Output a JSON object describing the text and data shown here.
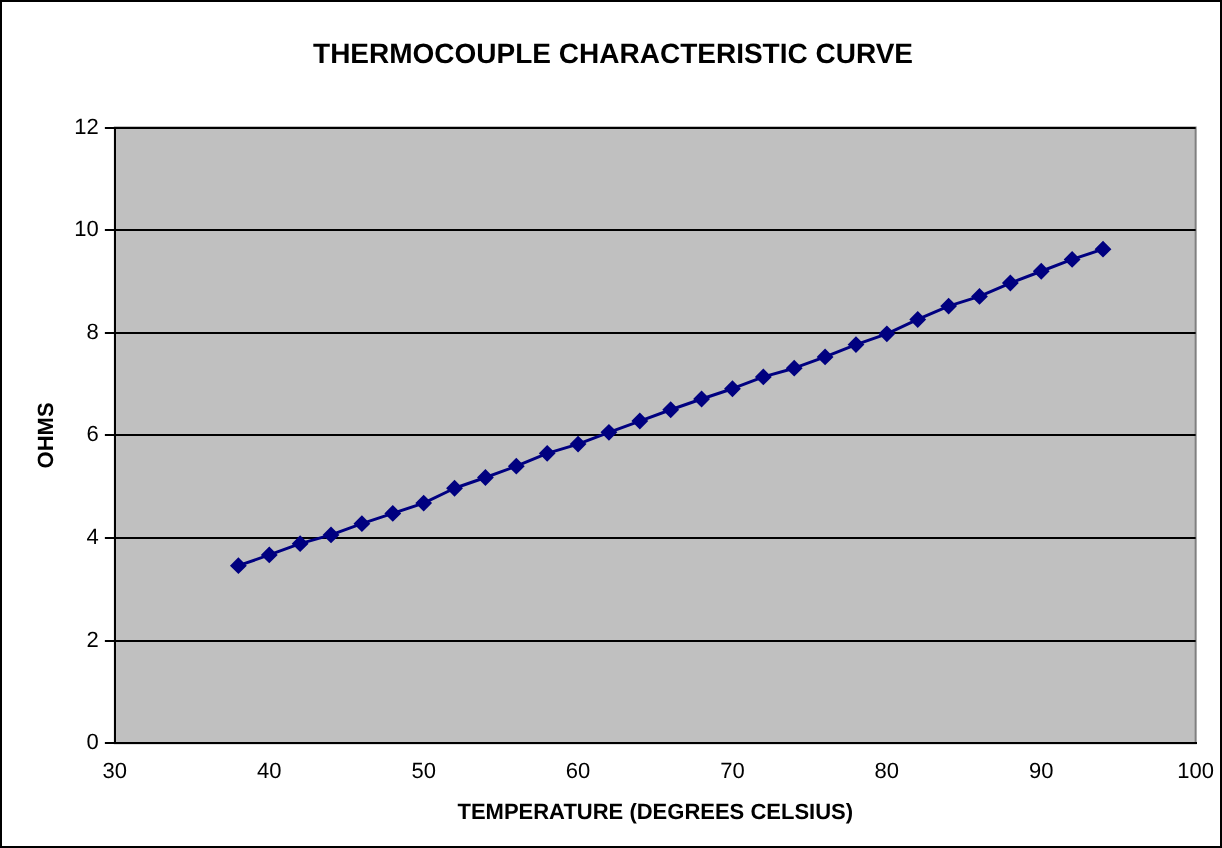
{
  "chart_data": {
    "type": "line",
    "title": "THERMOCOUPLE CHARACTERISTIC CURVE",
    "xlabel": "TEMPERATURE (DEGREES CELSIUS)",
    "ylabel": "OHMS",
    "x": [
      38,
      40,
      42,
      44,
      46,
      48,
      50,
      52,
      54,
      56,
      58,
      60,
      62,
      64,
      66,
      68,
      70,
      72,
      74,
      76,
      78,
      80,
      82,
      84,
      86,
      88,
      90,
      92,
      94
    ],
    "series": [
      {
        "color": "#000080",
        "values": [
          3.46,
          3.67,
          3.89,
          4.06,
          4.28,
          4.48,
          4.68,
          4.97,
          5.18,
          5.4,
          5.65,
          5.83,
          6.06,
          6.28,
          6.5,
          6.71,
          6.91,
          7.14,
          7.31,
          7.53,
          7.77,
          7.98,
          8.26,
          8.52,
          8.71,
          8.97,
          9.2,
          9.43,
          9.63
        ]
      }
    ],
    "xlim": [
      30,
      100
    ],
    "xticks": [
      30,
      40,
      50,
      60,
      70,
      80,
      90,
      100
    ],
    "ylim": [
      0,
      12
    ],
    "yticks": [
      0,
      2,
      4,
      6,
      8,
      10,
      12
    ],
    "grid": "y",
    "legend": false,
    "marker": "diamond",
    "line_style": "solid"
  }
}
